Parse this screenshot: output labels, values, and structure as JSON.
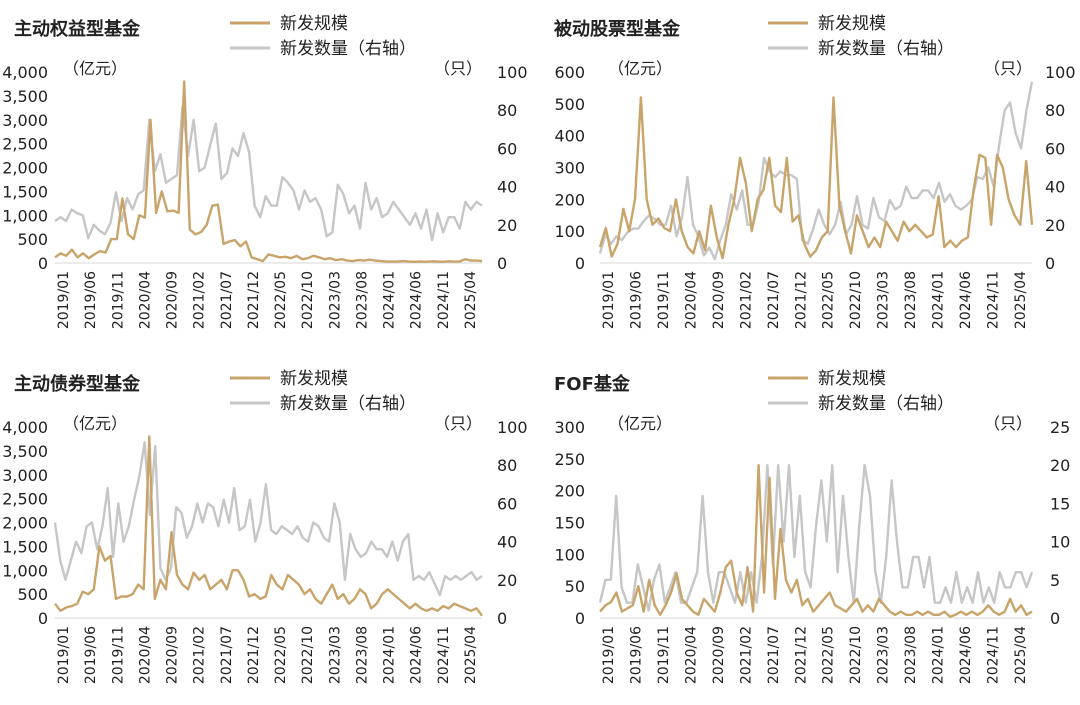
{
  "colors": {
    "scale": "#C9A46A",
    "count": "#C6C6C6"
  },
  "legend": {
    "scale": "新发规模",
    "count": "新发数量（右轴）"
  },
  "x_labels": [
    "2019/01",
    "2019/06",
    "2019/11",
    "2020/04",
    "2020/09",
    "2021/02",
    "2021/07",
    "2021/12",
    "2022/05",
    "2022/10",
    "2023/03",
    "2023/08",
    "2024/01",
    "2024/06",
    "2024/11",
    "2025/04"
  ],
  "chart_data": [
    {
      "type": "line",
      "title": "主动权益型基金",
      "left_unit": "（亿元）",
      "right_unit": "（只）",
      "left_ticks": [
        "0",
        "500",
        "1,000",
        "1,500",
        "2,000",
        "2,500",
        "3,000",
        "3,500",
        "4,000"
      ],
      "right_ticks": [
        "0",
        "20",
        "40",
        "60",
        "80",
        "100"
      ],
      "ylim": [
        0,
        4000
      ],
      "y2lim": [
        0,
        100
      ],
      "series": [
        {
          "name": "新发规模",
          "axis": "left",
          "values": [
            120,
            200,
            150,
            280,
            120,
            200,
            100,
            180,
            250,
            220,
            500,
            500,
            1350,
            600,
            500,
            1000,
            950,
            3000,
            1050,
            1500,
            1080,
            1100,
            1050,
            3800,
            700,
            600,
            650,
            800,
            1200,
            1220,
            400,
            450,
            480,
            350,
            450,
            120,
            80,
            40,
            180,
            150,
            120,
            130,
            100,
            150,
            80,
            100,
            150,
            120,
            80,
            100,
            60,
            80,
            50,
            40,
            60,
            50,
            70,
            50,
            40,
            30,
            30,
            30,
            40,
            30,
            25,
            30,
            25,
            35,
            30,
            25,
            35,
            30,
            30,
            80,
            50,
            50,
            40
          ]
        },
        {
          "name": "新发数量（右轴）",
          "axis": "right",
          "values": [
            22,
            24,
            22,
            28,
            26,
            25,
            13,
            20,
            17,
            15,
            21,
            37,
            22,
            34,
            28,
            36,
            38,
            75,
            48,
            57,
            42,
            44,
            46,
            82,
            56,
            75,
            48,
            50,
            62,
            73,
            44,
            47,
            60,
            56,
            68,
            58,
            30,
            24,
            35,
            30,
            30,
            45,
            42,
            38,
            28,
            38,
            32,
            34,
            28,
            14,
            16,
            41,
            36,
            26,
            30,
            18,
            42,
            28,
            34,
            24,
            26,
            32,
            28,
            24,
            20,
            26,
            18,
            28,
            12,
            26,
            16,
            24,
            24,
            18,
            32,
            28,
            32,
            30
          ]
        }
      ]
    },
    {
      "type": "line",
      "title": "被动股票型基金",
      "left_unit": "（亿元）",
      "right_unit": "（只）",
      "left_ticks": [
        "0",
        "100",
        "200",
        "300",
        "400",
        "500",
        "600"
      ],
      "right_ticks": [
        "0",
        "20",
        "40",
        "60",
        "80",
        "100"
      ],
      "ylim": [
        0,
        600
      ],
      "y2lim": [
        0,
        100
      ],
      "series": [
        {
          "name": "新发规模",
          "axis": "left",
          "values": [
            50,
            110,
            20,
            60,
            170,
            100,
            200,
            520,
            200,
            120,
            140,
            110,
            100,
            200,
            100,
            50,
            30,
            100,
            40,
            180,
            80,
            15,
            120,
            200,
            330,
            250,
            100,
            200,
            230,
            330,
            180,
            160,
            330,
            130,
            150,
            60,
            20,
            40,
            80,
            100,
            520,
            180,
            100,
            30,
            150,
            100,
            50,
            80,
            50,
            130,
            100,
            70,
            130,
            100,
            120,
            100,
            80,
            90,
            210,
            50,
            70,
            50,
            70,
            80,
            230,
            340,
            330,
            120,
            340,
            300,
            200,
            150,
            120,
            320,
            120
          ]
        },
        {
          "name": "新发数量（右轴）",
          "axis": "right",
          "values": [
            5,
            15,
            10,
            14,
            12,
            16,
            18,
            18,
            22,
            25,
            23,
            20,
            20,
            30,
            14,
            24,
            45,
            20,
            14,
            4,
            8,
            2,
            12,
            20,
            36,
            28,
            38,
            20,
            20,
            32,
            55,
            48,
            45,
            48,
            46,
            46,
            44,
            12,
            10,
            18,
            28,
            20,
            15,
            20,
            32,
            15,
            20,
            35,
            20,
            18,
            34,
            24,
            22,
            33,
            28,
            30,
            40,
            34,
            34,
            38,
            38,
            34,
            42,
            32,
            36,
            30,
            28,
            30,
            33,
            45,
            44,
            50,
            40,
            62,
            80,
            84,
            68,
            60,
            80,
            95
          ]
        }
      ]
    },
    {
      "type": "line",
      "title": "主动债券型基金",
      "left_unit": "（亿元）",
      "right_unit": "（只）",
      "left_ticks": [
        "0",
        "500",
        "1,000",
        "1,500",
        "2,000",
        "2,500",
        "3,000",
        "3,500",
        "4,000"
      ],
      "right_ticks": [
        "0",
        "20",
        "40",
        "60",
        "80",
        "100"
      ],
      "ylim": [
        0,
        4000
      ],
      "y2lim": [
        0,
        100
      ],
      "series": [
        {
          "name": "新发规模",
          "axis": "left",
          "values": [
            300,
            150,
            220,
            250,
            300,
            550,
            500,
            600,
            1500,
            1200,
            1300,
            400,
            450,
            450,
            500,
            700,
            600,
            3800,
            400,
            800,
            600,
            1800,
            900,
            700,
            600,
            950,
            800,
            900,
            600,
            700,
            800,
            600,
            1000,
            1000,
            800,
            450,
            500,
            400,
            450,
            900,
            700,
            600,
            900,
            800,
            700,
            500,
            600,
            400,
            300,
            500,
            700,
            400,
            500,
            300,
            400,
            600,
            500,
            200,
            300,
            500,
            600,
            500,
            400,
            300,
            200,
            300,
            200,
            150,
            200,
            150,
            250,
            200,
            300,
            250,
            200,
            150,
            200,
            50
          ]
        },
        {
          "name": "新发数量（右轴）",
          "axis": "right",
          "values": [
            50,
            30,
            20,
            30,
            40,
            34,
            48,
            50,
            36,
            48,
            68,
            32,
            60,
            40,
            48,
            62,
            74,
            92,
            54,
            90,
            26,
            20,
            26,
            58,
            55,
            42,
            48,
            60,
            50,
            60,
            58,
            48,
            62,
            50,
            68,
            46,
            48,
            62,
            40,
            50,
            70,
            46,
            44,
            48,
            46,
            44,
            48,
            42,
            40,
            50,
            48,
            42,
            40,
            60,
            50,
            20,
            44,
            36,
            32,
            34,
            40,
            36,
            36,
            32,
            40,
            30,
            40,
            44,
            20,
            22,
            20,
            24,
            18,
            12,
            22,
            20,
            22,
            20,
            22,
            24,
            20,
            22
          ]
        }
      ]
    },
    {
      "type": "line",
      "title": "FOF基金",
      "left_unit": "（亿元）",
      "right_unit": "（只）",
      "left_ticks": [
        "0",
        "50",
        "100",
        "150",
        "200",
        "250",
        "300"
      ],
      "right_ticks": [
        "0",
        "5",
        "10",
        "15",
        "20",
        "25"
      ],
      "ylim": [
        0,
        300
      ],
      "y2lim": [
        0,
        25
      ],
      "series": [
        {
          "name": "新发规模",
          "axis": "left",
          "values": [
            10,
            20,
            25,
            40,
            10,
            15,
            20,
            50,
            10,
            60,
            20,
            5,
            20,
            40,
            70,
            30,
            20,
            10,
            5,
            30,
            20,
            10,
            40,
            80,
            90,
            40,
            20,
            80,
            10,
            240,
            40,
            220,
            30,
            140,
            60,
            40,
            60,
            20,
            30,
            10,
            20,
            30,
            40,
            20,
            15,
            10,
            20,
            30,
            10,
            20,
            10,
            30,
            20,
            10,
            5,
            10,
            5,
            5,
            10,
            5,
            10,
            5,
            5,
            10,
            2,
            5,
            10,
            5,
            10,
            5,
            10,
            20,
            10,
            5,
            10,
            30,
            10,
            20,
            5,
            10
          ]
        },
        {
          "name": "新发数量（右轴）",
          "axis": "right",
          "values": [
            2,
            5,
            5,
            16,
            4,
            2,
            2,
            7,
            4,
            1,
            5,
            7,
            2,
            4,
            6,
            2,
            2,
            4,
            6,
            16,
            6,
            2,
            6,
            6,
            4,
            2,
            6,
            2,
            6,
            2,
            8,
            20,
            7,
            20,
            10,
            20,
            8,
            16,
            6,
            4,
            12,
            18,
            10,
            20,
            6,
            16,
            8,
            2,
            12,
            20,
            16,
            6,
            2,
            8,
            18,
            10,
            4,
            4,
            8,
            8,
            4,
            8,
            2,
            2,
            4,
            2,
            6,
            2,
            4,
            2,
            6,
            2,
            4,
            2,
            6,
            4,
            4,
            6,
            6,
            4,
            6
          ]
        }
      ]
    }
  ]
}
